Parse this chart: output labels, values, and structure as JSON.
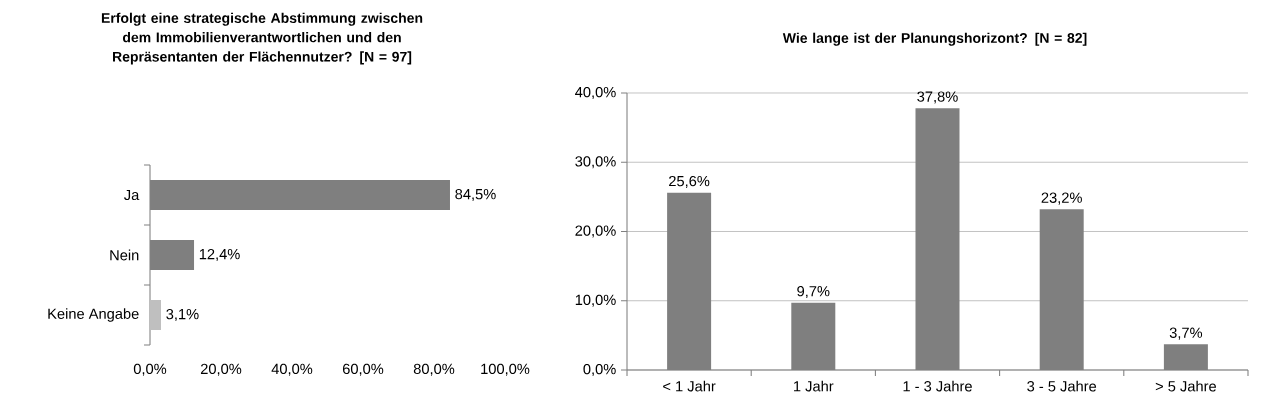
{
  "chart_data": [
    {
      "type": "bar",
      "orientation": "horizontal",
      "title": "Erfolgt eine strategische Abstimmung zwischen dem Immobilienverantwortlichen und den Repräsentanten der Flächennutzer? [N = 97]",
      "categories": [
        "Ja",
        "Nein",
        "Keine Angabe"
      ],
      "values": [
        84.5,
        12.4,
        3.1
      ],
      "colors": [
        "#7f7f7f",
        "#7f7f7f",
        "#bfbfbf"
      ],
      "value_labels": [
        "84,5%",
        "12,4%",
        "3,1%"
      ],
      "xlim": [
        0,
        100
      ],
      "xticks": [
        {
          "value": 0,
          "label": "0,0%"
        },
        {
          "value": 20,
          "label": "20,0%"
        },
        {
          "value": 40,
          "label": "40,0%"
        },
        {
          "value": 60,
          "label": "60,0%"
        },
        {
          "value": 80,
          "label": "80,0%"
        },
        {
          "value": 100,
          "label": "100,0%"
        }
      ]
    },
    {
      "type": "bar",
      "title": "Wie lange ist der Planungshorizont?   [N = 82]",
      "categories": [
        "< 1 Jahr",
        "1 Jahr",
        "1 - 3 Jahre",
        "3 - 5 Jahre",
        "> 5 Jahre"
      ],
      "values": [
        25.6,
        9.7,
        37.8,
        23.2,
        3.7
      ],
      "color": "#7f7f7f",
      "value_labels": [
        "25,6%",
        "9,7%",
        "37,8%",
        "23,2%",
        "3,7%"
      ],
      "ylim": [
        0,
        40
      ],
      "yticks": [
        {
          "value": 0,
          "label": "0,0%"
        },
        {
          "value": 10,
          "label": "10,0%"
        },
        {
          "value": 20,
          "label": "20,0%"
        },
        {
          "value": 30,
          "label": "30,0%"
        },
        {
          "value": 40,
          "label": "40,0%"
        }
      ],
      "grid": "y"
    }
  ]
}
